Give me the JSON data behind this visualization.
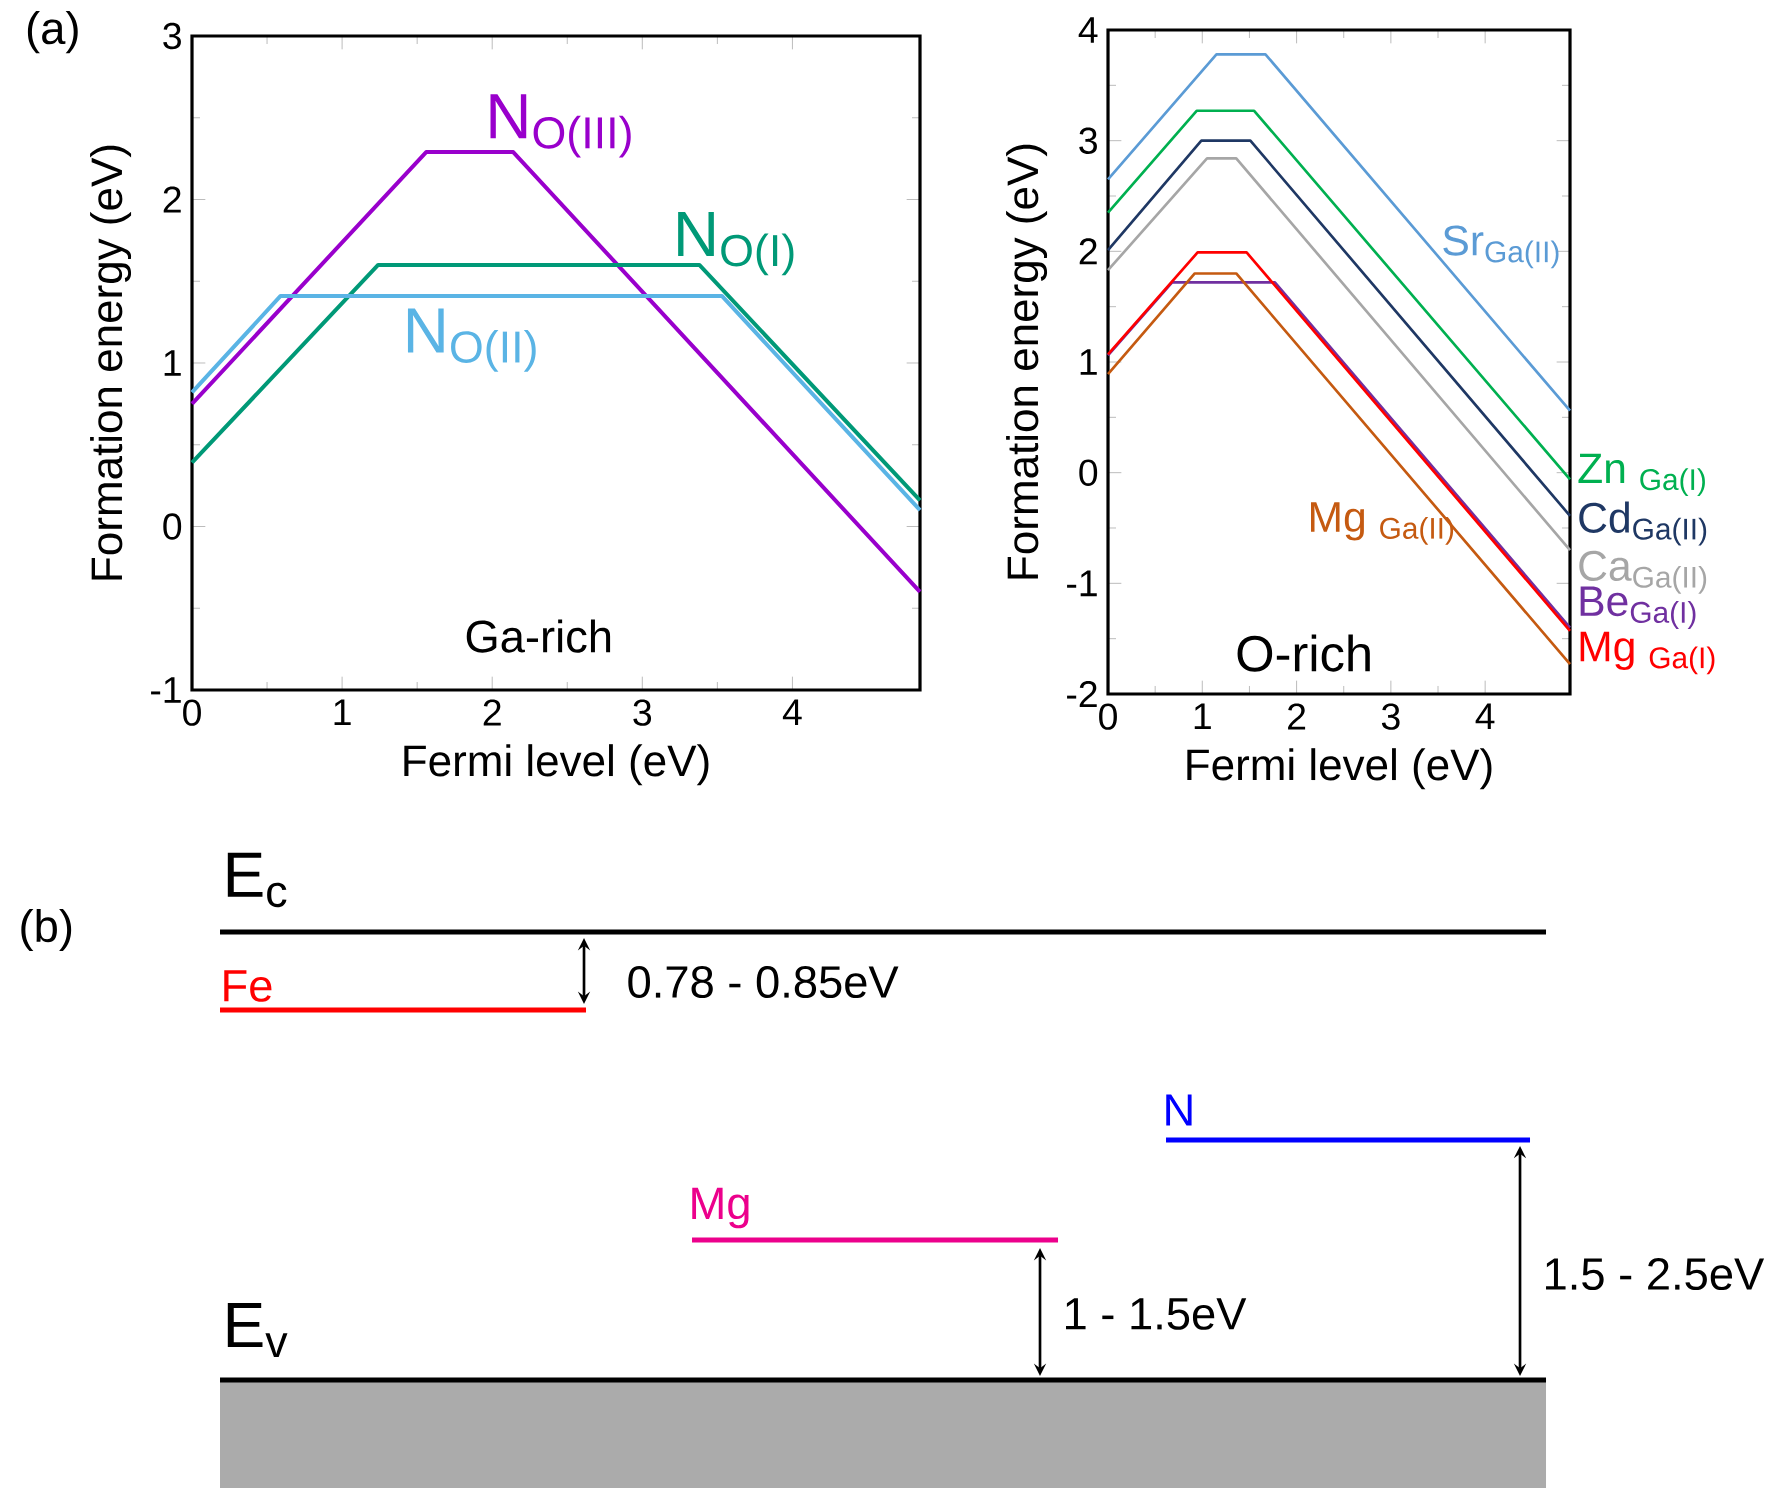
{
  "chart_data": [
    {
      "type": "line",
      "xlabel": "Fermi level (eV)",
      "ylabel": "Formation energy (eV)",
      "xlim": [
        0,
        4.85
      ],
      "ylim": [
        -1,
        3
      ],
      "xticks": [
        0,
        1,
        2,
        3,
        4
      ],
      "yticks": [
        -1,
        0,
        1,
        2,
        3
      ],
      "annotations": [
        "(a)",
        "Ga-rich"
      ],
      "series": [
        {
          "name": "N$_{O(III)}$",
          "color": "#9900cc",
          "x": [
            0,
            1.56,
            2.14,
            4.85
          ],
          "values": [
            0.75,
            2.29,
            2.29,
            -0.4
          ]
        },
        {
          "name": "N$_{O(I)}$",
          "color": "#009977",
          "x": [
            0,
            1.24,
            3.38,
            4.85
          ],
          "values": [
            0.39,
            1.6,
            1.6,
            0.16
          ]
        },
        {
          "name": "N$_{O(II)}$",
          "color": "#5ab4e5",
          "x": [
            0,
            0.59,
            3.53,
            4.85
          ],
          "values": [
            0.82,
            1.41,
            1.41,
            0.1
          ]
        }
      ]
    },
    {
      "type": "line",
      "xlabel": "Fermi level (eV)",
      "ylabel": "Formation energy (eV)",
      "xlim": [
        0,
        4.9
      ],
      "ylim": [
        -2,
        4
      ],
      "xticks": [
        0,
        1,
        2,
        3,
        4
      ],
      "yticks": [
        -2,
        -1,
        0,
        1,
        2,
        3,
        4
      ],
      "annotations": [
        "O-rich"
      ],
      "series": [
        {
          "name": "Sr$_{Ga(II)}$",
          "color": "#5b9bd5",
          "x": [
            0,
            1.15,
            1.67,
            4.9
          ],
          "values": [
            2.65,
            3.78,
            3.78,
            0.56
          ]
        },
        {
          "name": "Zn $_{Ga(I)}$",
          "color": "#00b050",
          "x": [
            0,
            0.94,
            1.55,
            4.9
          ],
          "values": [
            2.35,
            3.27,
            3.27,
            -0.06
          ]
        },
        {
          "name": "Cd$_{Ga(II)}$",
          "color": "#1f3864",
          "x": [
            0,
            0.99,
            1.51,
            4.9
          ],
          "values": [
            2.01,
            3.0,
            3.0,
            -0.39
          ]
        },
        {
          "name": "Ca$_{Ga(II)}$",
          "color": "#a6a6a6",
          "x": [
            0,
            1.05,
            1.36,
            4.9
          ],
          "values": [
            1.83,
            2.84,
            2.84,
            -0.7
          ]
        },
        {
          "name": "Be$_{Ga(I)}$",
          "color": "#7030a0",
          "x": [
            0,
            0.68,
            1.77,
            4.9
          ],
          "values": [
            1.06,
            1.72,
            1.72,
            -1.4
          ]
        },
        {
          "name": "Mg $_{Ga(I)}$",
          "color": "#ff0000",
          "x": [
            0,
            0.95,
            1.47,
            4.9
          ],
          "values": [
            1.07,
            1.99,
            1.99,
            -1.43
          ]
        },
        {
          "name": "Mg $_{Ga(II)}$",
          "color": "#c55a11",
          "x": [
            0,
            0.92,
            1.36,
            4.9
          ],
          "values": [
            0.89,
            1.8,
            1.8,
            -1.73
          ]
        }
      ]
    },
    {
      "type": "other",
      "title": "(b)",
      "annotations": [
        "E$_{c}$",
        "Fe",
        "0.78 - 0.85eV",
        "N",
        "Mg",
        "1 - 1.5eV",
        "1.5 - 2.5eV",
        "E$_{v}$"
      ]
    }
  ]
}
